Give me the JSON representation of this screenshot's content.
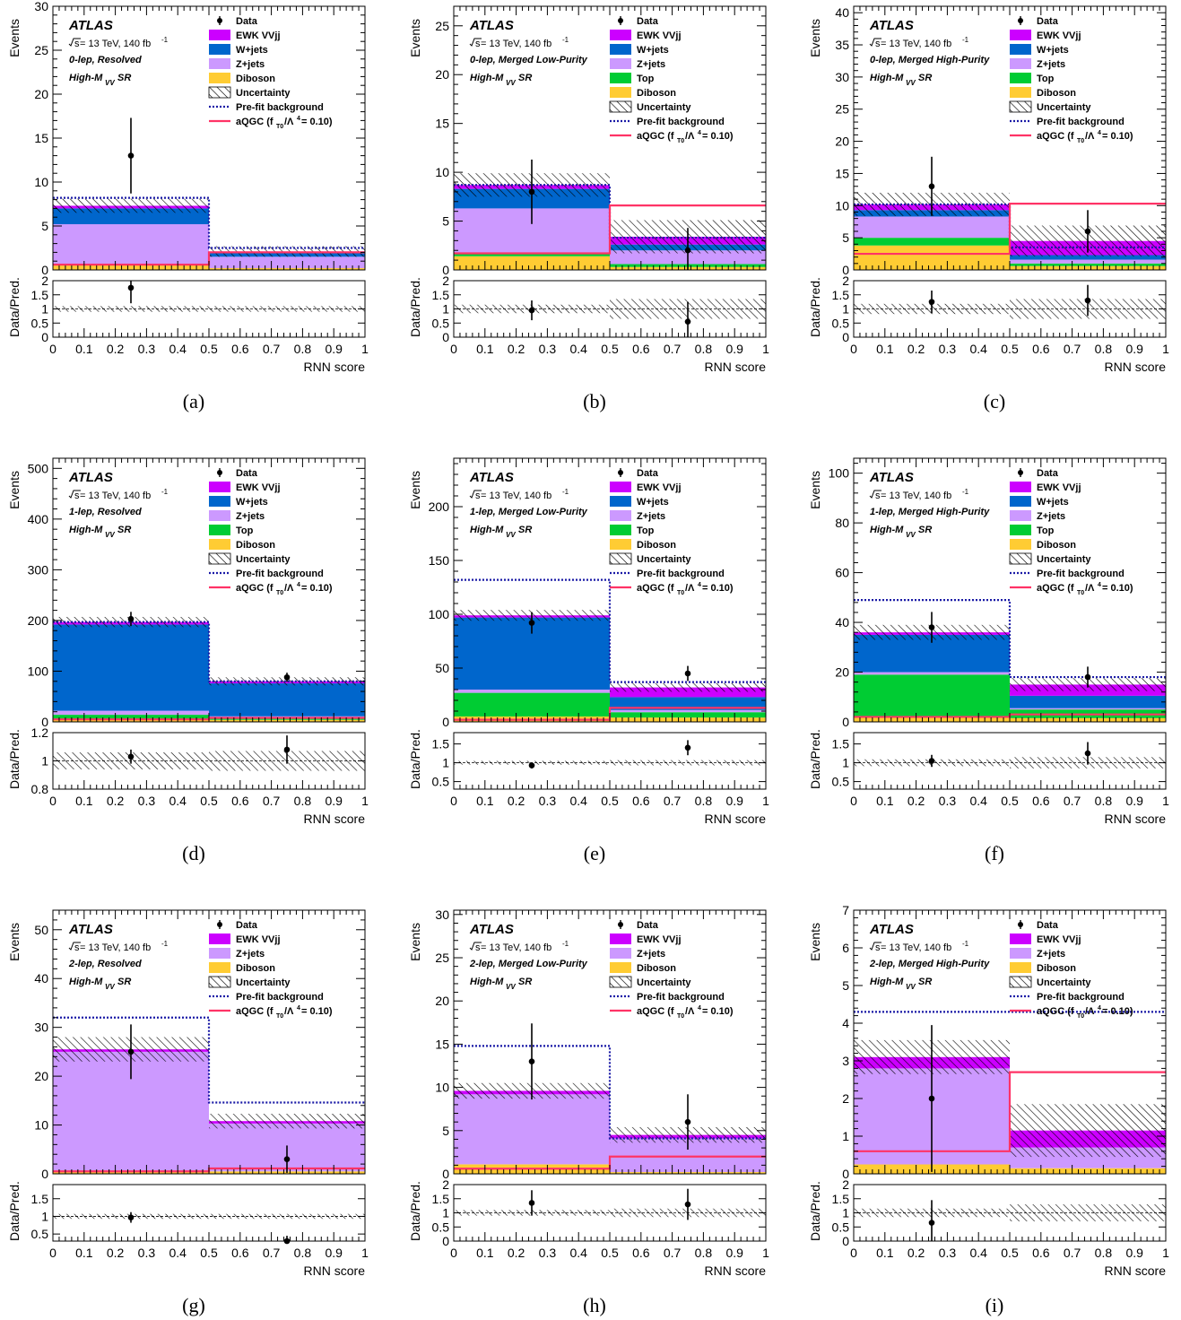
{
  "common": {
    "experiment": "ATLAS",
    "energy_prefix": "s",
    "energy_text": " = 13 TeV, 140 fb",
    "lumi_superscript": "-1",
    "sr_prefix": "High-M",
    "sr_sub": "VV",
    "sr_suffix": " SR",
    "y_label": "Events",
    "ratio_label": "Data/Pred.",
    "x_label": "RNN score",
    "x_ticks": [
      0,
      0.1,
      0.2,
      0.3,
      0.4,
      0.5,
      0.6,
      0.7,
      0.8,
      0.9,
      1
    ],
    "bin_edges": [
      0,
      0.5,
      1
    ],
    "legend_labels": {
      "data": "Data",
      "ewk": "EWK VVjj",
      "wjets": "W+jets",
      "zjets": "Z+jets",
      "top": "Top",
      "diboson": "Diboson",
      "unc": "Uncertainty",
      "prefit": "Pre-fit background",
      "aqgc": "aQGC (f",
      "aqgc_sub": "T0",
      "aqgc_mid": "/Λ",
      "aqgc_sup": "4",
      "aqgc_end": "= 0.10)"
    },
    "colors": {
      "ewk": "#cc00ff",
      "wjets": "#0066cc",
      "zjets": "#cc99ff",
      "top": "#00cc33",
      "diboson": "#ffcc33",
      "prefit": "#1a1aa6",
      "aqgc": "#ff3366",
      "data": "#000000"
    }
  },
  "chart_data": [
    {
      "type": "bar",
      "caption": "(a)",
      "region": "0-lep, Resolved",
      "legend": [
        "data",
        "ewk",
        "wjets",
        "zjets",
        "diboson",
        "unc",
        "prefit",
        "aqgc"
      ],
      "ylim": [
        0,
        30
      ],
      "yticks": [
        0,
        5,
        10,
        15,
        20,
        25,
        30
      ],
      "stack": {
        "diboson": [
          0.6,
          0.2
        ],
        "top": [
          0,
          0
        ],
        "zjets": [
          4.6,
          1.3
        ],
        "wjets": [
          1.8,
          0.4
        ],
        "ewk": [
          0.3,
          0.2
        ]
      },
      "unc": [
        0.8,
        0.6
      ],
      "prefit": [
        8.2,
        2.5
      ],
      "aqgc": [
        0.6,
        2.0
      ],
      "data": [
        13,
        null
      ],
      "data_err": [
        4.3,
        null
      ],
      "ratio": [
        1.75,
        null
      ],
      "ratio_err": [
        0.55,
        null
      ],
      "ratio_unc": [
        0.1,
        0.1
      ],
      "ratio_ylim": [
        0,
        2
      ],
      "ratio_yticks": [
        0,
        0.5,
        1,
        1.5,
        2
      ]
    },
    {
      "type": "bar",
      "caption": "(b)",
      "region": "0-lep, Merged Low-Purity",
      "legend": [
        "data",
        "ewk",
        "wjets",
        "zjets",
        "top",
        "diboson",
        "unc",
        "prefit",
        "aqgc"
      ],
      "ylim": [
        0,
        27
      ],
      "yticks": [
        0,
        5,
        10,
        15,
        20,
        25
      ],
      "stack": {
        "diboson": [
          1.4,
          0.3
        ],
        "top": [
          0.3,
          0.3
        ],
        "zjets": [
          4.6,
          1.4
        ],
        "wjets": [
          2.0,
          0.6
        ],
        "ewk": [
          0.4,
          0.8
        ]
      },
      "unc": [
        1.2,
        1.7
      ],
      "prefit": [
        8.7,
        3.3
      ],
      "aqgc": [
        1.7,
        6.6
      ],
      "data": [
        8,
        2
      ],
      "data_err": [
        3.3,
        2.3
      ],
      "ratio": [
        0.95,
        0.55
      ],
      "ratio_err": [
        0.35,
        0.7
      ],
      "ratio_unc": [
        0.15,
        0.35
      ],
      "ratio_ylim": [
        0,
        2
      ],
      "ratio_yticks": [
        0,
        0.5,
        1,
        1.5,
        2
      ]
    },
    {
      "type": "bar",
      "caption": "(c)",
      "region": "0-lep, Merged High-Purity",
      "legend": [
        "data",
        "ewk",
        "wjets",
        "zjets",
        "top",
        "diboson",
        "unc",
        "prefit",
        "aqgc"
      ],
      "ylim": [
        0,
        41
      ],
      "yticks": [
        0,
        5,
        10,
        15,
        20,
        25,
        30,
        35,
        40
      ],
      "stack": {
        "diboson": [
          3.8,
          0.6
        ],
        "top": [
          1.2,
          0.4
        ],
        "zjets": [
          3.3,
          0.6
        ],
        "wjets": [
          1.0,
          0.7
        ],
        "ewk": [
          0.9,
          2.2
        ]
      },
      "unc": [
        1.8,
        2.4
      ],
      "prefit": [
        10.2,
        3.5
      ],
      "aqgc": [
        2.5,
        10.3
      ],
      "data": [
        13,
        6
      ],
      "data_err": [
        4.6,
        3.3
      ],
      "ratio": [
        1.25,
        1.3
      ],
      "ratio_err": [
        0.4,
        0.55
      ],
      "ratio_unc": [
        0.18,
        0.35
      ],
      "ratio_ylim": [
        0,
        2
      ],
      "ratio_yticks": [
        0,
        0.5,
        1,
        1.5,
        2
      ]
    },
    {
      "type": "bar",
      "caption": "(d)",
      "region": "1-lep, Resolved",
      "legend": [
        "data",
        "ewk",
        "wjets",
        "zjets",
        "top",
        "diboson",
        "unc",
        "prefit",
        "aqgc"
      ],
      "ylim": [
        0,
        520
      ],
      "yticks": [
        0,
        100,
        200,
        300,
        400,
        500
      ],
      "stack": {
        "diboson": [
          6,
          4
        ],
        "top": [
          8,
          3
        ],
        "zjets": [
          8,
          4
        ],
        "wjets": [
          170,
          65
        ],
        "ewk": [
          5,
          4
        ]
      },
      "unc": [
        10,
        8
      ],
      "prefit": [
        197,
        80
      ],
      "aqgc": [
        5,
        8
      ],
      "data": [
        203,
        88
      ],
      "data_err": [
        14,
        9
      ],
      "ratio": [
        1.03,
        1.08
      ],
      "ratio_err": [
        0.05,
        0.1
      ],
      "ratio_unc": [
        0.06,
        0.07
      ],
      "ratio_ylim": [
        0.8,
        1.2
      ],
      "ratio_yticks": [
        0.8,
        1,
        1.2
      ]
    },
    {
      "type": "bar",
      "caption": "(e)",
      "region": "1-lep, Merged Low-Purity",
      "legend": [
        "data",
        "ewk",
        "wjets",
        "zjets",
        "top",
        "diboson",
        "unc",
        "prefit",
        "aqgc"
      ],
      "ylim": [
        0,
        245
      ],
      "yticks": [
        0,
        50,
        100,
        150,
        200
      ],
      "stack": {
        "diboson": [
          5,
          4
        ],
        "top": [
          22,
          5
        ],
        "zjets": [
          3,
          2
        ],
        "wjets": [
          67,
          12
        ],
        "ewk": [
          2,
          9
        ]
      },
      "unc": [
        5,
        4
      ],
      "prefit": [
        132,
        37
      ],
      "aqgc": [
        2,
        13
      ],
      "data": [
        92,
        45
      ],
      "data_err": [
        10,
        7
      ],
      "ratio": [
        0.93,
        1.4
      ],
      "ratio_err": [
        0.08,
        0.2
      ],
      "ratio_unc": [
        0.05,
        0.07
      ],
      "ratio_ylim": [
        0.3,
        1.8
      ],
      "ratio_yticks": [
        0.5,
        1,
        1.5
      ]
    },
    {
      "type": "bar",
      "caption": "(f)",
      "region": "1-lep, Merged High-Purity",
      "legend": [
        "data",
        "ewk",
        "wjets",
        "zjets",
        "top",
        "diboson",
        "unc",
        "prefit",
        "aqgc"
      ],
      "ylim": [
        0,
        106
      ],
      "yticks": [
        0,
        20,
        40,
        60,
        80,
        100
      ],
      "stack": {
        "diboson": [
          2,
          1.5
        ],
        "top": [
          17,
          3.5
        ],
        "zjets": [
          1,
          0.5
        ],
        "wjets": [
          15,
          5
        ],
        "ewk": [
          1,
          4.5
        ]
      },
      "unc": [
        3,
        2.6
      ],
      "prefit": [
        49,
        18
      ],
      "aqgc": [
        2,
        3
      ],
      "data": [
        38,
        18
      ],
      "data_err": [
        6.2,
        4.2
      ],
      "ratio": [
        1.05,
        1.25
      ],
      "ratio_err": [
        0.16,
        0.3
      ],
      "ratio_unc": [
        0.09,
        0.15
      ],
      "ratio_ylim": [
        0.3,
        1.8
      ],
      "ratio_yticks": [
        0.5,
        1,
        1.5
      ]
    },
    {
      "type": "bar",
      "caption": "(g)",
      "region": "2-lep, Resolved",
      "legend": [
        "data",
        "ewk",
        "zjets",
        "diboson",
        "unc",
        "prefit",
        "aqgc"
      ],
      "ylim": [
        0,
        54
      ],
      "yticks": [
        0,
        10,
        20,
        30,
        40,
        50
      ],
      "stack": {
        "diboson": [
          0.6,
          0.5
        ],
        "top": [
          0,
          0
        ],
        "zjets": [
          24.4,
          9.8
        ],
        "wjets": [
          0,
          0
        ],
        "ewk": [
          0.5,
          0.5
        ]
      },
      "unc": [
        2.5,
        1.5
      ],
      "prefit": [
        32,
        14.6
      ],
      "aqgc": [
        0.5,
        1.1
      ],
      "data": [
        25,
        3
      ],
      "data_err": [
        5.6,
        2.8
      ],
      "ratio": [
        0.97,
        0.3
      ],
      "ratio_err": [
        0.15,
        0.15
      ],
      "ratio_unc": [
        0.07,
        0.07
      ],
      "ratio_ylim": [
        0.3,
        1.9
      ],
      "ratio_yticks": [
        0.5,
        1,
        1.5
      ]
    },
    {
      "type": "bar",
      "caption": "(h)",
      "region": "2-lep, Merged Low-Purity",
      "legend": [
        "data",
        "ewk",
        "zjets",
        "diboson",
        "unc",
        "prefit",
        "aqgc"
      ],
      "ylim": [
        0,
        30.5
      ],
      "yticks": [
        0,
        5,
        10,
        15,
        20,
        25,
        30
      ],
      "stack": {
        "diboson": [
          1.1,
          0.2
        ],
        "top": [
          0,
          0
        ],
        "zjets": [
          8.1,
          3.9
        ],
        "wjets": [
          0,
          0
        ],
        "ewk": [
          0.4,
          0.4
        ]
      },
      "unc": [
        0.9,
        0.9
      ],
      "prefit": [
        14.8,
        4.1
      ],
      "aqgc": [
        0.6,
        2.0
      ],
      "data": [
        13,
        6
      ],
      "data_err": [
        4.4,
        3.2
      ],
      "ratio": [
        1.35,
        1.3
      ],
      "ratio_err": [
        0.45,
        0.55
      ],
      "ratio_unc": [
        0.1,
        0.15
      ],
      "ratio_ylim": [
        0,
        2
      ],
      "ratio_yticks": [
        0,
        0.5,
        1,
        1.5,
        2
      ]
    },
    {
      "type": "bar",
      "caption": "(i)",
      "region": "2-lep, Merged High-Purity",
      "legend": [
        "data",
        "ewk",
        "zjets",
        "diboson",
        "unc",
        "prefit",
        "aqgc"
      ],
      "ylim": [
        0,
        7
      ],
      "yticks": [
        0,
        1,
        2,
        3,
        4,
        5,
        6,
        7
      ],
      "stack": {
        "diboson": [
          0.25,
          0.15
        ],
        "top": [
          0,
          0
        ],
        "zjets": [
          2.55,
          0.55
        ],
        "wjets": [
          0,
          0
        ],
        "ewk": [
          0.3,
          0.45
        ]
      },
      "unc": [
        0.45,
        0.7
      ],
      "prefit": [
        4.3,
        4.3
      ],
      "aqgc": [
        0.6,
        2.7
      ],
      "data": [
        2,
        null
      ],
      "data_err": [
        1.95,
        null
      ],
      "ratio": [
        0.65,
        null
      ],
      "ratio_err": [
        0.8,
        null
      ],
      "ratio_unc": [
        0.15,
        0.3
      ],
      "ratio_ylim": [
        0,
        2
      ],
      "ratio_yticks": [
        0,
        0.5,
        1,
        1.5,
        2
      ]
    }
  ]
}
